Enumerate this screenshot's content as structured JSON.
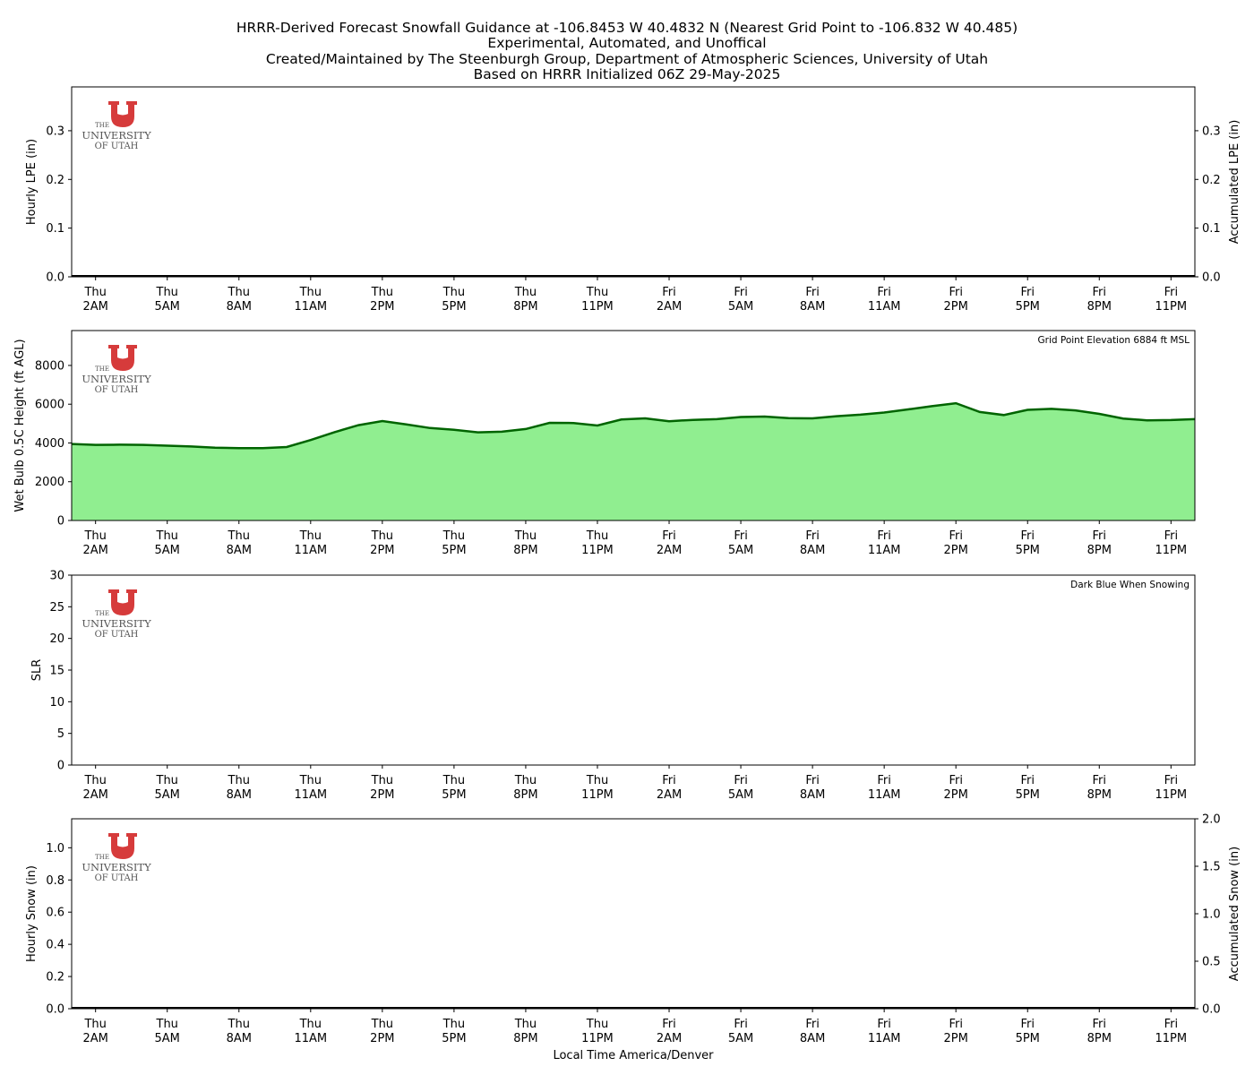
{
  "title_lines": [
    "HRRR-Derived Forecast Snowfall Guidance at -106.8453 W 40.4832 N (Nearest Grid Point to -106.832 W 40.485)",
    "Experimental, Automated, and Unoffical",
    "Created/Maintained by The Steenburgh Group, Department of Atmospheric Sciences, University of Utah",
    "Based on HRRR Initialized 06Z 29-May-2025"
  ],
  "logo": {
    "line1": "THE",
    "line2": "UNIVERSITY",
    "line3": "OF UTAH",
    "color": "#d63b3b"
  },
  "xlabel": "Local Time America/Denver",
  "x_ticks": [
    {
      "day": "Thu",
      "time": "2AM",
      "hour": 0
    },
    {
      "day": "Thu",
      "time": "5AM",
      "hour": 3
    },
    {
      "day": "Thu",
      "time": "8AM",
      "hour": 6
    },
    {
      "day": "Thu",
      "time": "11AM",
      "hour": 9
    },
    {
      "day": "Thu",
      "time": "2PM",
      "hour": 12
    },
    {
      "day": "Thu",
      "time": "5PM",
      "hour": 15
    },
    {
      "day": "Thu",
      "time": "8PM",
      "hour": 18
    },
    {
      "day": "Thu",
      "time": "11PM",
      "hour": 21
    },
    {
      "day": "Fri",
      "time": "2AM",
      "hour": 24
    },
    {
      "day": "Fri",
      "time": "5AM",
      "hour": 27
    },
    {
      "day": "Fri",
      "time": "8AM",
      "hour": 30
    },
    {
      "day": "Fri",
      "time": "11AM",
      "hour": 33
    },
    {
      "day": "Fri",
      "time": "2PM",
      "hour": 36
    },
    {
      "day": "Fri",
      "time": "5PM",
      "hour": 39
    },
    {
      "day": "Fri",
      "time": "8PM",
      "hour": 42
    },
    {
      "day": "Fri",
      "time": "11PM",
      "hour": 45
    }
  ],
  "chart_data": [
    {
      "type": "bar",
      "ylabel": "Hourly LPE (in)",
      "ylabel_right": "Accumulated LPE (in)",
      "ylim": [
        0,
        0.39
      ],
      "yticks": [
        "0.0",
        "0.1",
        "0.2",
        "0.3"
      ],
      "ylim_right": [
        0,
        0.39
      ],
      "yticks_right": [
        "0.0",
        "0.1",
        "0.2",
        "0.3"
      ],
      "hourly_values": [],
      "accumulated": 0,
      "annotation": ""
    },
    {
      "type": "area",
      "ylabel": "Wet Bulb 0.5C Height (ft AGL)",
      "ylim": [
        0,
        9800
      ],
      "yticks": [
        "0",
        "2000",
        "4000",
        "6000",
        "8000"
      ],
      "annotation": "Grid Point Elevation 6884 ft MSL",
      "fill_color": "#90ee90",
      "line_color": "#006400",
      "x": [
        -1,
        0,
        1,
        2,
        3,
        4,
        5,
        6,
        7,
        8,
        9,
        10,
        11,
        12,
        13,
        14,
        15,
        16,
        17,
        18,
        19,
        20,
        21,
        22,
        23,
        24,
        25,
        26,
        27,
        28,
        29,
        30,
        31,
        32,
        33,
        34,
        35,
        36,
        37,
        38,
        39,
        40,
        41,
        42,
        43,
        44,
        45,
        46
      ],
      "values": [
        3950,
        3900,
        3910,
        3900,
        3860,
        3820,
        3760,
        3730,
        3730,
        3790,
        4150,
        4560,
        4920,
        5130,
        4960,
        4770,
        4680,
        4550,
        4580,
        4720,
        5040,
        5030,
        4900,
        5210,
        5270,
        5120,
        5190,
        5230,
        5340,
        5360,
        5280,
        5270,
        5380,
        5460,
        5570,
        5730,
        5900,
        6050,
        5600,
        5440,
        5710,
        5760,
        5680,
        5500,
        5260,
        5170,
        5180,
        5230
      ]
    },
    {
      "type": "line",
      "ylabel": "SLR",
      "ylim": [
        0,
        30
      ],
      "yticks": [
        "0",
        "5",
        "10",
        "15",
        "20",
        "25",
        "30"
      ],
      "annotation": "Dark Blue When Snowing",
      "values": []
    },
    {
      "type": "bar",
      "ylabel": "Hourly Snow (in)",
      "ylabel_right": "Accumulated Snow (in)",
      "ylim": [
        0,
        1.18
      ],
      "yticks": [
        "0.0",
        "0.2",
        "0.4",
        "0.6",
        "0.8",
        "1.0"
      ],
      "ylim_right": [
        0,
        2.0
      ],
      "yticks_right": [
        "0.0",
        "0.5",
        "1.0",
        "1.5",
        "2.0"
      ],
      "hourly_values": [],
      "accumulated": 0,
      "annotation": ""
    }
  ]
}
